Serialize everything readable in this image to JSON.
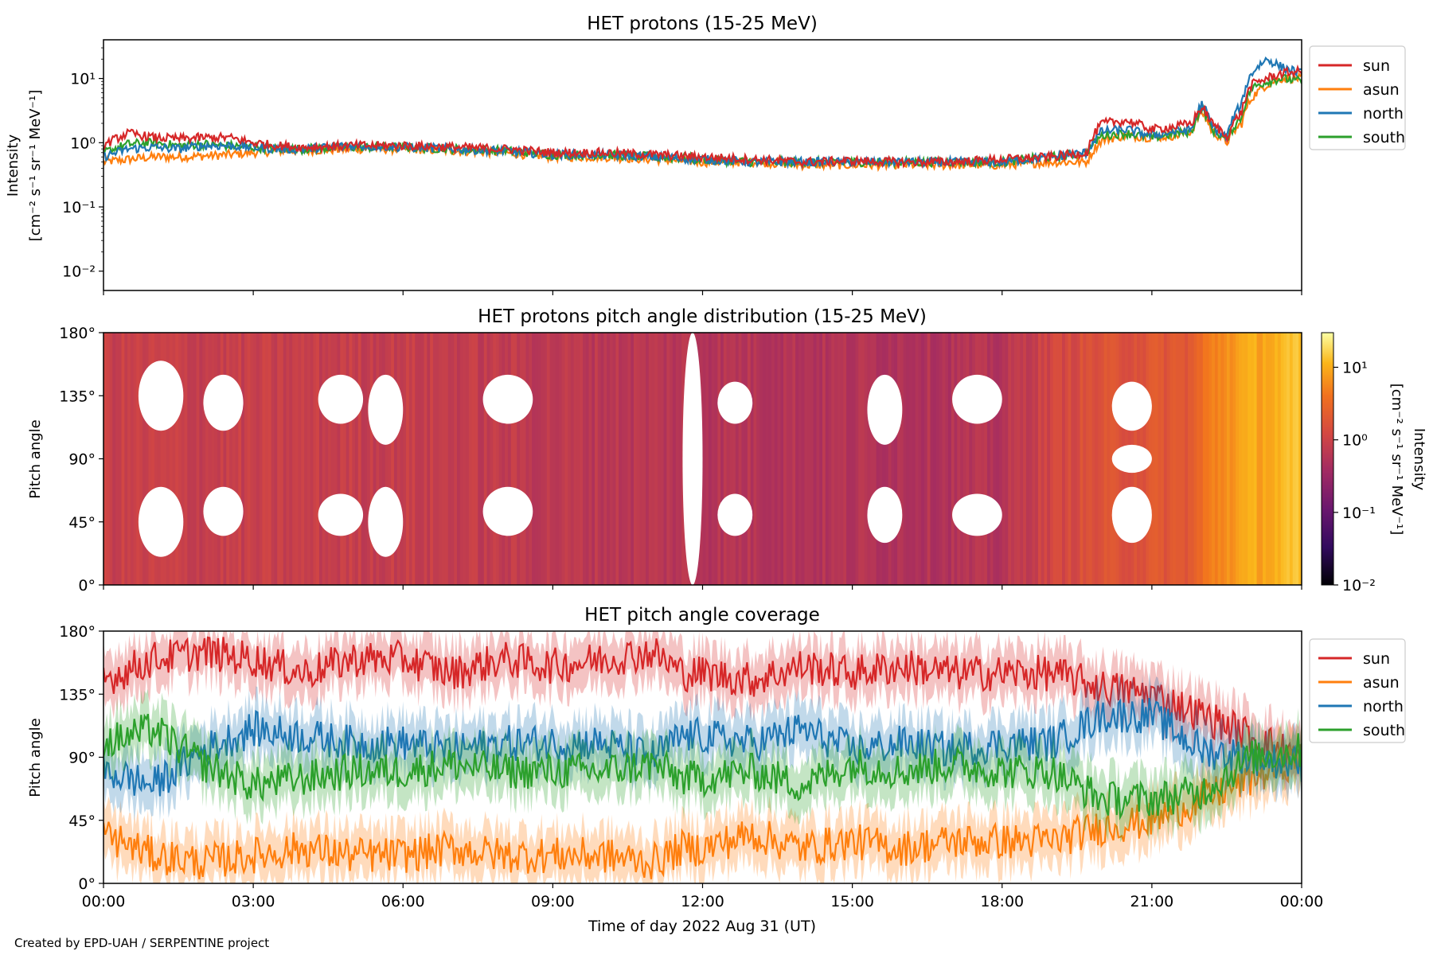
{
  "credit": "Created by EPD-UAH / SERPENTINE project",
  "xaxis": {
    "label": "Time of day 2022 Aug 31 (UT)",
    "range_hours": [
      0,
      24
    ],
    "ticks": [
      0,
      3,
      6,
      9,
      12,
      15,
      18,
      21,
      24
    ],
    "tick_labels": [
      "00:00",
      "03:00",
      "06:00",
      "09:00",
      "12:00",
      "15:00",
      "18:00",
      "21:00",
      "00:00"
    ]
  },
  "colors": {
    "sun": "#d62728",
    "asun": "#ff7f0e",
    "north": "#1f77b4",
    "south": "#2ca02c"
  },
  "legend_labels": [
    "sun",
    "asun",
    "north",
    "south"
  ],
  "chart_data": [
    {
      "type": "line",
      "title": "HET protons (15-25 MeV)",
      "ylabel_lines": [
        "Intensity",
        "[cm⁻² s⁻¹ sr⁻¹ MeV⁻¹]"
      ],
      "yscale": "log",
      "ylim": [
        0.005,
        40
      ],
      "ytick_labels": [
        "10⁻²",
        "10⁻¹",
        "10⁰",
        "10¹"
      ],
      "ytick_values": [
        0.01,
        0.1,
        1,
        10
      ],
      "legend": "outside-right-top",
      "x_hours": [
        0,
        0.5,
        1,
        1.5,
        2,
        2.5,
        3,
        3.5,
        4,
        5,
        6,
        7,
        8,
        9,
        10,
        11,
        12,
        13,
        14,
        15,
        16,
        17,
        18,
        19,
        19.7,
        20,
        20.5,
        21,
        21.5,
        21.8,
        22,
        22.2,
        22.5,
        22.8,
        23,
        23.3,
        23.6,
        24
      ],
      "series": [
        {
          "name": "sun",
          "values": [
            0.9,
            1.4,
            1.2,
            1.15,
            1.2,
            1.2,
            1.0,
            0.9,
            0.85,
            0.9,
            0.9,
            0.85,
            0.8,
            0.7,
            0.7,
            0.65,
            0.6,
            0.55,
            0.5,
            0.52,
            0.5,
            0.5,
            0.55,
            0.6,
            0.7,
            2.0,
            2.2,
            1.6,
            1.8,
            2.0,
            3.5,
            2.0,
            1.2,
            3.0,
            8.0,
            10.0,
            12.0,
            13.0
          ]
        },
        {
          "name": "asun",
          "values": [
            0.5,
            0.55,
            0.6,
            0.6,
            0.62,
            0.65,
            0.7,
            0.75,
            0.75,
            0.8,
            0.8,
            0.75,
            0.7,
            0.6,
            0.6,
            0.55,
            0.5,
            0.5,
            0.45,
            0.45,
            0.45,
            0.45,
            0.45,
            0.5,
            0.5,
            1.1,
            1.3,
            1.2,
            1.3,
            1.5,
            3.0,
            1.5,
            1.0,
            2.0,
            5.0,
            8.0,
            10.0,
            10.0
          ]
        },
        {
          "name": "north",
          "values": [
            0.6,
            0.8,
            0.85,
            0.8,
            0.9,
            0.9,
            0.85,
            0.8,
            0.8,
            0.9,
            0.85,
            0.8,
            0.75,
            0.65,
            0.65,
            0.6,
            0.55,
            0.5,
            0.5,
            0.5,
            0.5,
            0.5,
            0.5,
            0.6,
            0.7,
            1.5,
            1.6,
            1.3,
            1.5,
            1.6,
            4.0,
            1.8,
            1.2,
            4.0,
            12.0,
            20.0,
            15.0,
            12.0
          ]
        },
        {
          "name": "south",
          "values": [
            0.7,
            0.95,
            1.0,
            0.9,
            0.95,
            0.9,
            0.85,
            0.8,
            0.8,
            0.85,
            0.85,
            0.8,
            0.75,
            0.65,
            0.65,
            0.6,
            0.55,
            0.5,
            0.5,
            0.5,
            0.5,
            0.5,
            0.5,
            0.6,
            0.7,
            1.3,
            1.4,
            1.2,
            1.4,
            1.5,
            3.5,
            1.6,
            1.1,
            2.5,
            7.0,
            9.0,
            10.0,
            9.0
          ]
        }
      ]
    },
    {
      "type": "heatmap",
      "title": "HET protons pitch angle distribution (15-25 MeV)",
      "ylabel": "Pitch angle",
      "ylim": [
        0,
        180
      ],
      "ytick_values": [
        0,
        45,
        90,
        135,
        180
      ],
      "ytick_labels": [
        "0°",
        "45°",
        "90°",
        "135°",
        "180°"
      ],
      "colorbar": {
        "label": "Intensity",
        "units": "[cm⁻² s⁻¹ sr⁻¹ MeV⁻¹]",
        "scale": "log",
        "range": [
          0.01,
          30
        ],
        "colormap": "inferno",
        "tick_values": [
          0.01,
          0.1,
          1,
          10
        ],
        "tick_labels": [
          "10⁻²",
          "10⁻¹",
          "10⁰",
          "10¹"
        ]
      },
      "time_profile_hours": [
        0,
        3,
        6,
        9,
        12,
        15,
        18,
        19.7,
        21.8,
        22.7,
        24
      ],
      "time_profile_intensity": [
        0.9,
        0.85,
        0.85,
        0.7,
        0.6,
        0.55,
        0.55,
        1.5,
        2.0,
        8.0,
        12.0
      ],
      "gaps": [
        {
          "x_hours": [
            11.6,
            12.0
          ],
          "pitch_deg": [
            0,
            180
          ]
        },
        {
          "x_hours": [
            0.7,
            1.6
          ],
          "pitch_deg": [
            110,
            160
          ]
        },
        {
          "x_hours": [
            0.7,
            1.6
          ],
          "pitch_deg": [
            20,
            70
          ]
        },
        {
          "x_hours": [
            2.0,
            2.8
          ],
          "pitch_deg": [
            110,
            150
          ]
        },
        {
          "x_hours": [
            2.0,
            2.8
          ],
          "pitch_deg": [
            35,
            70
          ]
        },
        {
          "x_hours": [
            4.3,
            5.2
          ],
          "pitch_deg": [
            115,
            150
          ]
        },
        {
          "x_hours": [
            4.3,
            5.2
          ],
          "pitch_deg": [
            35,
            65
          ]
        },
        {
          "x_hours": [
            5.3,
            6.0
          ],
          "pitch_deg": [
            100,
            150
          ]
        },
        {
          "x_hours": [
            5.3,
            6.0
          ],
          "pitch_deg": [
            20,
            70
          ]
        },
        {
          "x_hours": [
            7.6,
            8.6
          ],
          "pitch_deg": [
            115,
            150
          ]
        },
        {
          "x_hours": [
            7.6,
            8.6
          ],
          "pitch_deg": [
            35,
            70
          ]
        },
        {
          "x_hours": [
            12.3,
            13.0
          ],
          "pitch_deg": [
            115,
            145
          ]
        },
        {
          "x_hours": [
            12.3,
            13.0
          ],
          "pitch_deg": [
            35,
            65
          ]
        },
        {
          "x_hours": [
            15.3,
            16.0
          ],
          "pitch_deg": [
            100,
            150
          ]
        },
        {
          "x_hours": [
            15.3,
            16.0
          ],
          "pitch_deg": [
            30,
            70
          ]
        },
        {
          "x_hours": [
            17.0,
            18.0
          ],
          "pitch_deg": [
            115,
            150
          ]
        },
        {
          "x_hours": [
            17.0,
            18.0
          ],
          "pitch_deg": [
            35,
            65
          ]
        },
        {
          "x_hours": [
            20.2,
            21.0
          ],
          "pitch_deg": [
            110,
            145
          ]
        },
        {
          "x_hours": [
            20.2,
            21.0
          ],
          "pitch_deg": [
            80,
            100
          ]
        },
        {
          "x_hours": [
            20.2,
            21.0
          ],
          "pitch_deg": [
            30,
            70
          ]
        }
      ]
    },
    {
      "type": "line",
      "title": "HET pitch angle coverage",
      "ylabel": "Pitch angle",
      "ylim": [
        0,
        180
      ],
      "ytick_values": [
        0,
        45,
        90,
        135,
        180
      ],
      "ytick_labels": [
        "0°",
        "45°",
        "90°",
        "135°",
        "180°"
      ],
      "legend": "outside-right-top",
      "band_halfwidth_deg": 18,
      "x_hours": [
        0,
        1,
        2,
        3,
        4,
        5,
        6,
        7,
        8,
        9,
        10,
        11,
        11.6,
        12,
        13,
        14,
        15,
        16,
        17,
        18,
        19,
        20,
        21,
        22,
        23,
        24
      ],
      "series": [
        {
          "name": "sun",
          "values": [
            145,
            160,
            165,
            160,
            150,
            160,
            160,
            150,
            160,
            155,
            160,
            165,
            150,
            150,
            145,
            155,
            150,
            155,
            150,
            150,
            150,
            140,
            135,
            120,
            105,
            90
          ]
        },
        {
          "name": "asun",
          "values": [
            35,
            20,
            15,
            20,
            25,
            20,
            20,
            25,
            20,
            20,
            20,
            15,
            25,
            25,
            35,
            25,
            30,
            25,
            30,
            30,
            30,
            40,
            45,
            60,
            75,
            90
          ]
        },
        {
          "name": "north",
          "values": [
            80,
            70,
            95,
            110,
            105,
            100,
            100,
            95,
            100,
            100,
            100,
            90,
            105,
            105,
            100,
            110,
            95,
            100,
            95,
            100,
            100,
            120,
            120,
            95,
            90,
            85
          ]
        },
        {
          "name": "south",
          "values": [
            100,
            110,
            85,
            70,
            75,
            80,
            80,
            85,
            80,
            80,
            80,
            85,
            75,
            75,
            80,
            70,
            85,
            80,
            85,
            80,
            80,
            60,
            60,
            65,
            90,
            95
          ]
        }
      ]
    }
  ]
}
